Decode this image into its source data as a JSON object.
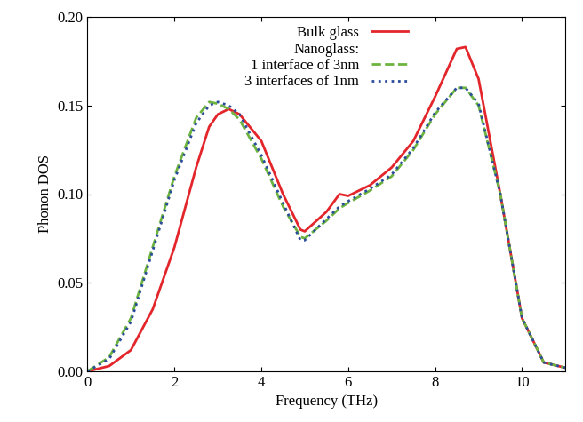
{
  "chart_data": {
    "type": "line",
    "x_label": "Frequency (THz)",
    "y_label": "Phonon DOS",
    "annotations": [
      "Nanoglass:"
    ],
    "x": [
      0,
      0.5,
      1,
      1.5,
      2,
      2.5,
      2.8,
      3,
      3.25,
      3.5,
      4,
      4.5,
      4.9,
      5,
      5.5,
      5.8,
      6,
      6.5,
      7,
      7.5,
      8,
      8.5,
      8.7,
      9,
      9.5,
      10,
      10.5,
      11
    ],
    "series": [
      {
        "name": "Bulk glass",
        "color": "#e3262b",
        "line_style": "solid",
        "values": [
          0,
          0.003,
          0.012,
          0.035,
          0.07,
          0.115,
          0.138,
          0.145,
          0.148,
          0.145,
          0.13,
          0.1,
          0.08,
          0.079,
          0.09,
          0.1,
          0.099,
          0.105,
          0.115,
          0.13,
          0.155,
          0.182,
          0.183,
          0.165,
          0.1,
          0.03,
          0.005,
          0.002
        ]
      },
      {
        "name": "1 interface of 3nm",
        "color": "#6cb43f",
        "line_style": "dashed",
        "values": [
          0,
          0.008,
          0.03,
          0.07,
          0.11,
          0.143,
          0.152,
          0.151,
          0.148,
          0.142,
          0.12,
          0.093,
          0.076,
          0.075,
          0.085,
          0.092,
          0.095,
          0.102,
          0.11,
          0.125,
          0.145,
          0.16,
          0.16,
          0.15,
          0.1,
          0.03,
          0.005,
          0.002
        ]
      },
      {
        "name": "3 interfaces of 1nm",
        "color": "#2b4c9b",
        "line_style": "dotted",
        "values": [
          0,
          0.007,
          0.028,
          0.068,
          0.108,
          0.14,
          0.15,
          0.152,
          0.15,
          0.145,
          0.122,
          0.095,
          0.074,
          0.074,
          0.086,
          0.093,
          0.096,
          0.103,
          0.111,
          0.126,
          0.146,
          0.16,
          0.16,
          0.151,
          0.1,
          0.03,
          0.005,
          0.002
        ]
      }
    ],
    "xlim": [
      0,
      11
    ],
    "xticks": [
      0,
      2,
      4,
      6,
      8,
      10
    ],
    "ylim": [
      0,
      0.2
    ],
    "yticks": [
      {
        "value": 0,
        "label": "0.00"
      },
      {
        "value": 0.05,
        "label": "0.05"
      },
      {
        "value": 0.1,
        "label": "0.10"
      },
      {
        "value": 0.15,
        "label": "0.15"
      },
      {
        "value": 0.2,
        "label": "0.20"
      }
    ],
    "legend": "upper center",
    "grid": false
  }
}
